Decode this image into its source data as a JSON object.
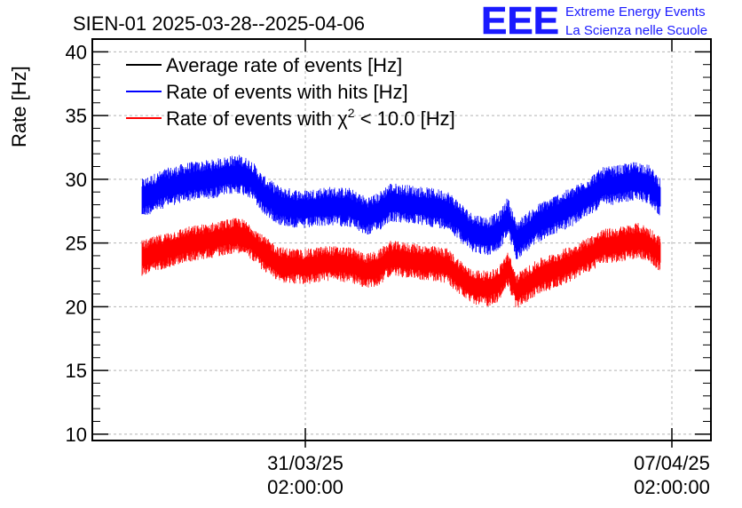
{
  "chart_data": {
    "type": "line",
    "title": "SIEN-01 2025-03-28--2025-04-06",
    "xlabel": "",
    "ylabel": "Rate [Hz]",
    "ylim": [
      9.5,
      41
    ],
    "x_domain": {
      "start_hours_before_first_tick": 56.5,
      "span_hours": 158.2,
      "data_start": 13.0,
      "data_end": 157.0
    },
    "x_ticks": [
      {
        "hours": 72,
        "date": "31/03/25",
        "time": "02:00:00"
      },
      {
        "hours": 216,
        "date": "07/04/25",
        "time": "02:00:00"
      }
    ],
    "y_ticks": [
      10,
      15,
      20,
      25,
      30,
      35,
      40
    ],
    "grid": true,
    "legend_position": "top-left",
    "legend": [
      {
        "label": "Average rate of events [Hz]",
        "color": "#000000"
      },
      {
        "label": "Rate of events with hits [Hz]",
        "color": "#0000ff"
      },
      {
        "label_prefix": "Rate of events with ",
        "label_symbol": "χ",
        "label_sup": "2",
        "label_suffix": " < 10.0 [Hz]",
        "color": "#ff0000"
      }
    ],
    "series": [
      {
        "name": "Rate of events with hits [Hz]",
        "color": "#0000ff",
        "noise_amplitude": 1.1,
        "points": [
          [
            0,
            28.5
          ],
          [
            8,
            29.3
          ],
          [
            16,
            29.8
          ],
          [
            24,
            30.0
          ],
          [
            30,
            30.3
          ],
          [
            34,
            30.4
          ],
          [
            38,
            30.0
          ],
          [
            42,
            28.8
          ],
          [
            48,
            27.9
          ],
          [
            56,
            27.6
          ],
          [
            64,
            27.9
          ],
          [
            72,
            27.8
          ],
          [
            78,
            27.1
          ],
          [
            82,
            27.4
          ],
          [
            86,
            28.2
          ],
          [
            94,
            28.0
          ],
          [
            100,
            27.8
          ],
          [
            106,
            27.6
          ],
          [
            110,
            26.8
          ],
          [
            114,
            25.9
          ],
          [
            120,
            25.5
          ],
          [
            124,
            25.9
          ],
          [
            127,
            27.1
          ],
          [
            130,
            25.2
          ],
          [
            134,
            25.9
          ],
          [
            138,
            26.6
          ],
          [
            144,
            27.3
          ],
          [
            150,
            27.9
          ],
          [
            156,
            28.8
          ],
          [
            160,
            29.4
          ],
          [
            166,
            29.6
          ],
          [
            172,
            29.9
          ],
          [
            176,
            29.6
          ],
          [
            180,
            28.6
          ]
        ]
      },
      {
        "name": "Rate of events with χ2 < 10.0 [Hz]",
        "color": "#ff0000",
        "noise_amplitude": 1.0,
        "points": [
          [
            0,
            23.8
          ],
          [
            8,
            24.4
          ],
          [
            16,
            24.9
          ],
          [
            24,
            25.2
          ],
          [
            30,
            25.5
          ],
          [
            34,
            25.6
          ],
          [
            38,
            25.1
          ],
          [
            42,
            24.2
          ],
          [
            48,
            23.3
          ],
          [
            56,
            23.1
          ],
          [
            64,
            23.4
          ],
          [
            72,
            23.3
          ],
          [
            78,
            22.8
          ],
          [
            82,
            23.0
          ],
          [
            86,
            23.8
          ],
          [
            94,
            23.6
          ],
          [
            100,
            23.4
          ],
          [
            106,
            23.2
          ],
          [
            110,
            22.4
          ],
          [
            114,
            21.6
          ],
          [
            120,
            21.4
          ],
          [
            124,
            21.8
          ],
          [
            127,
            23.0
          ],
          [
            130,
            21.2
          ],
          [
            134,
            21.8
          ],
          [
            138,
            22.4
          ],
          [
            144,
            22.9
          ],
          [
            150,
            23.5
          ],
          [
            156,
            24.2
          ],
          [
            160,
            24.7
          ],
          [
            166,
            24.9
          ],
          [
            172,
            25.2
          ],
          [
            176,
            24.9
          ],
          [
            180,
            24.1
          ]
        ]
      }
    ]
  },
  "logo": {
    "mark": "EEE",
    "line1": "Extreme Energy Events",
    "line2": "La Scienza nelle Scuole",
    "color": "#1a1aff"
  },
  "colors": {
    "grid": "#b4b4b4",
    "frame": "#000000"
  }
}
